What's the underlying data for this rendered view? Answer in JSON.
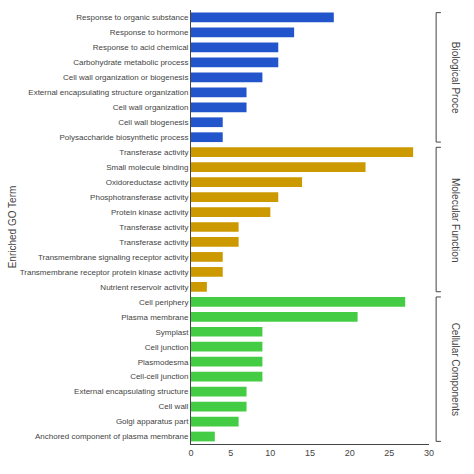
{
  "chart_data": {
    "type": "bar",
    "orientation": "horizontal",
    "categories": [
      "Response to organic substance",
      "Response to hormone",
      "Response to acid chemical",
      "Carbohydrate metabolic process",
      "Cell wall organization or biogenesis",
      "External encapsulating structure organization",
      "Cell wall organization",
      "Cell wall biogenesis",
      "Polysaccharide biosynthetic process",
      "Transferase activity",
      "Small molecule binding",
      "Oxidoreductase activity",
      "Phosphotransferase activity",
      "Protein kinase activity",
      "Transferase activity",
      "Transferase activity",
      "Transmembrane signaling receptor activity",
      "Transmembrane receptor protein kinase activity",
      "Nutrient reservoir activity",
      "Cell periphery",
      "Plasma membrane",
      "Symplast",
      "Cell junction",
      "Plasmodesma",
      "Cell-cell junction",
      "External encapsulating structure",
      "Cell wall",
      "Golgi apparatus part",
      "Anchored component of plasma membrane"
    ],
    "series": [
      {
        "name": "Biological Proce",
        "color": "#2255cc",
        "values": [
          18,
          13,
          11,
          11,
          9,
          7,
          7,
          4,
          4,
          null,
          null,
          null,
          null,
          null,
          null,
          null,
          null,
          null,
          null,
          null,
          null,
          null,
          null,
          null,
          null,
          null,
          null,
          null,
          null
        ]
      },
      {
        "name": "Molecular Function",
        "color": "#cc9900",
        "values": [
          null,
          null,
          null,
          null,
          null,
          null,
          null,
          null,
          null,
          28,
          22,
          14,
          11,
          10,
          6,
          6,
          4,
          4,
          2,
          null,
          null,
          null,
          null,
          null,
          null,
          null,
          null,
          null,
          null
        ]
      },
      {
        "name": "Cellular Components",
        "color": "#44cc44",
        "values": [
          null,
          null,
          null,
          null,
          null,
          null,
          null,
          null,
          null,
          null,
          null,
          null,
          null,
          null,
          null,
          null,
          null,
          null,
          null,
          27,
          21,
          9,
          9,
          9,
          9,
          7,
          7,
          6,
          3
        ]
      }
    ],
    "ylabel": "Enriched GO Term",
    "xlim": [
      0,
      30
    ],
    "xticks": [
      0,
      5,
      10,
      15,
      20,
      25,
      30
    ],
    "grid": false
  }
}
